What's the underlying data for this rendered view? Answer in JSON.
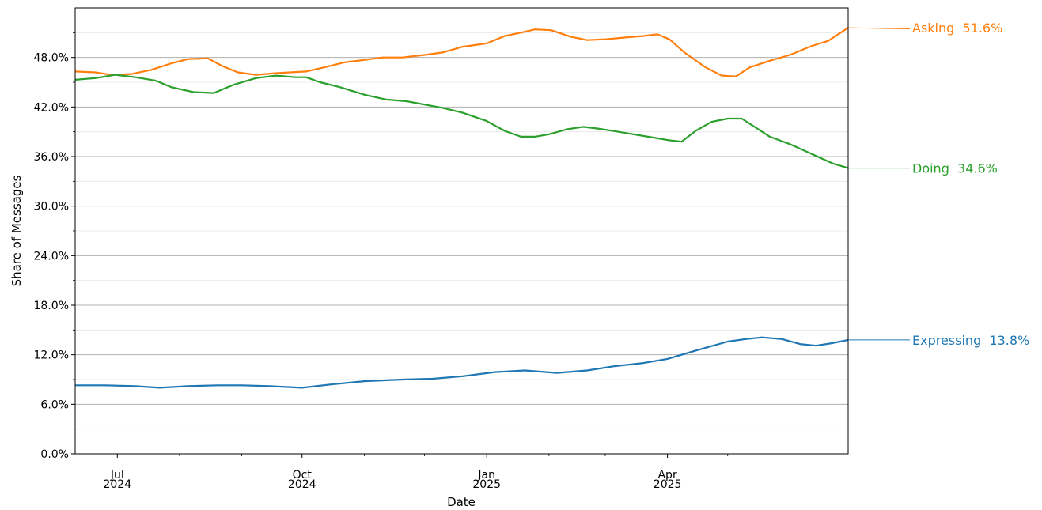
{
  "chart_data": {
    "type": "line",
    "xlabel": "Date",
    "ylabel": "Share of Messages",
    "x_range": [
      "2024-06-10",
      "2025-06-30"
    ],
    "ylim": [
      0,
      54
    ],
    "y_ticks": [
      "0.0%",
      "6.0%",
      "12.0%",
      "18.0%",
      "24.0%",
      "30.0%",
      "36.0%",
      "42.0%",
      "48.0%"
    ],
    "x_ticks": [
      {
        "date": "2024-07-01",
        "label1": "Jul",
        "label2": "2024"
      },
      {
        "date": "2024-10-01",
        "label1": "Oct",
        "label2": "2024"
      },
      {
        "date": "2025-01-01",
        "label1": "Jan",
        "label2": "2025"
      },
      {
        "date": "2025-04-01",
        "label1": "Apr",
        "label2": "2025"
      }
    ],
    "grid": {
      "major_y": true,
      "minor_y": true
    },
    "series": [
      {
        "name": "Asking",
        "end_label": "51.6%",
        "color": "#ff7f0e",
        "points": [
          [
            "2024-06-10",
            46.3
          ],
          [
            "2024-06-20",
            46.2
          ],
          [
            "2024-06-28",
            45.9
          ],
          [
            "2024-07-08",
            46.0
          ],
          [
            "2024-07-18",
            46.5
          ],
          [
            "2024-07-28",
            47.3
          ],
          [
            "2024-08-05",
            47.8
          ],
          [
            "2024-08-15",
            47.9
          ],
          [
            "2024-08-22",
            47.0
          ],
          [
            "2024-08-30",
            46.2
          ],
          [
            "2024-09-08",
            45.9
          ],
          [
            "2024-09-18",
            46.1
          ],
          [
            "2024-09-25",
            46.2
          ],
          [
            "2024-10-03",
            46.3
          ],
          [
            "2024-10-12",
            46.8
          ],
          [
            "2024-10-22",
            47.4
          ],
          [
            "2024-11-01",
            47.7
          ],
          [
            "2024-11-10",
            48.0
          ],
          [
            "2024-11-20",
            48.0
          ],
          [
            "2024-12-01",
            48.3
          ],
          [
            "2024-12-10",
            48.6
          ],
          [
            "2024-12-20",
            49.3
          ],
          [
            "2025-01-01",
            49.7
          ],
          [
            "2025-01-10",
            50.6
          ],
          [
            "2025-01-18",
            51.0
          ],
          [
            "2025-01-25",
            51.4
          ],
          [
            "2025-02-02",
            51.3
          ],
          [
            "2025-02-12",
            50.5
          ],
          [
            "2025-02-20",
            50.1
          ],
          [
            "2025-03-01",
            50.2
          ],
          [
            "2025-03-10",
            50.4
          ],
          [
            "2025-03-20",
            50.6
          ],
          [
            "2025-03-27",
            50.8
          ],
          [
            "2025-04-02",
            50.2
          ],
          [
            "2025-04-10",
            48.5
          ],
          [
            "2025-04-20",
            46.8
          ],
          [
            "2025-04-28",
            45.8
          ],
          [
            "2025-05-05",
            45.7
          ],
          [
            "2025-05-12",
            46.8
          ],
          [
            "2025-05-22",
            47.6
          ],
          [
            "2025-06-01",
            48.3
          ],
          [
            "2025-06-12",
            49.4
          ],
          [
            "2025-06-20",
            50.0
          ],
          [
            "2025-06-30",
            51.6
          ]
        ]
      },
      {
        "name": "Doing",
        "end_label": "34.6%",
        "color": "#2ca02c",
        "points": [
          [
            "2024-06-10",
            45.3
          ],
          [
            "2024-06-20",
            45.5
          ],
          [
            "2024-06-30",
            45.9
          ],
          [
            "2024-07-10",
            45.6
          ],
          [
            "2024-07-20",
            45.2
          ],
          [
            "2024-07-28",
            44.4
          ],
          [
            "2024-08-08",
            43.8
          ],
          [
            "2024-08-18",
            43.7
          ],
          [
            "2024-08-28",
            44.7
          ],
          [
            "2024-09-08",
            45.5
          ],
          [
            "2024-09-18",
            45.8
          ],
          [
            "2024-09-28",
            45.6
          ],
          [
            "2024-10-03",
            45.6
          ],
          [
            "2024-10-10",
            45.0
          ],
          [
            "2024-10-20",
            44.4
          ],
          [
            "2024-11-01",
            43.5
          ],
          [
            "2024-11-12",
            42.9
          ],
          [
            "2024-11-22",
            42.7
          ],
          [
            "2024-12-01",
            42.3
          ],
          [
            "2024-12-10",
            41.9
          ],
          [
            "2024-12-20",
            41.3
          ],
          [
            "2025-01-01",
            40.3
          ],
          [
            "2025-01-10",
            39.1
          ],
          [
            "2025-01-18",
            38.4
          ],
          [
            "2025-01-25",
            38.4
          ],
          [
            "2025-02-01",
            38.7
          ],
          [
            "2025-02-10",
            39.3
          ],
          [
            "2025-02-18",
            39.6
          ],
          [
            "2025-02-25",
            39.4
          ],
          [
            "2025-03-05",
            39.1
          ],
          [
            "2025-03-15",
            38.7
          ],
          [
            "2025-03-25",
            38.3
          ],
          [
            "2025-04-01",
            38.0
          ],
          [
            "2025-04-08",
            37.8
          ],
          [
            "2025-04-15",
            39.1
          ],
          [
            "2025-04-23",
            40.2
          ],
          [
            "2025-05-01",
            40.6
          ],
          [
            "2025-05-08",
            40.6
          ],
          [
            "2025-05-15",
            39.5
          ],
          [
            "2025-05-22",
            38.4
          ],
          [
            "2025-06-01",
            37.5
          ],
          [
            "2025-06-12",
            36.3
          ],
          [
            "2025-06-22",
            35.2
          ],
          [
            "2025-06-30",
            34.6
          ]
        ]
      },
      {
        "name": "Expressing",
        "end_label": "13.8%",
        "color": "#1f77b4",
        "points": [
          [
            "2024-06-10",
            8.3
          ],
          [
            "2024-06-25",
            8.3
          ],
          [
            "2024-07-10",
            8.2
          ],
          [
            "2024-07-22",
            8.0
          ],
          [
            "2024-08-05",
            8.2
          ],
          [
            "2024-08-20",
            8.3
          ],
          [
            "2024-09-01",
            8.3
          ],
          [
            "2024-09-15",
            8.2
          ],
          [
            "2024-10-01",
            8.0
          ],
          [
            "2024-10-15",
            8.4
          ],
          [
            "2024-11-01",
            8.8
          ],
          [
            "2024-11-20",
            9.0
          ],
          [
            "2024-12-05",
            9.1
          ],
          [
            "2024-12-20",
            9.4
          ],
          [
            "2025-01-05",
            9.9
          ],
          [
            "2025-01-20",
            10.1
          ],
          [
            "2025-02-05",
            9.8
          ],
          [
            "2025-02-20",
            10.1
          ],
          [
            "2025-03-05",
            10.6
          ],
          [
            "2025-03-20",
            11.0
          ],
          [
            "2025-04-01",
            11.5
          ],
          [
            "2025-04-15",
            12.5
          ],
          [
            "2025-05-01",
            13.6
          ],
          [
            "2025-05-10",
            13.9
          ],
          [
            "2025-05-18",
            14.1
          ],
          [
            "2025-05-28",
            13.9
          ],
          [
            "2025-06-06",
            13.3
          ],
          [
            "2025-06-14",
            13.1
          ],
          [
            "2025-06-22",
            13.4
          ],
          [
            "2025-06-30",
            13.8
          ]
        ]
      }
    ]
  }
}
